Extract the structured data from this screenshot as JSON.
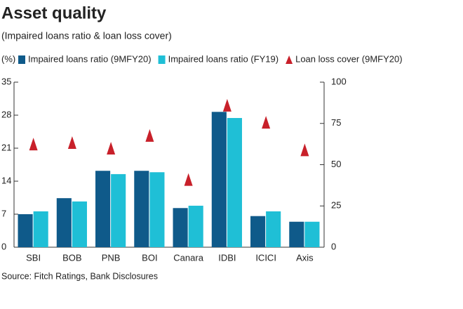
{
  "chart_data": {
    "type": "bar",
    "title": "Asset quality",
    "subtitle": "(Impaired loans ratio & loan loss cover)",
    "y_label": "(%)",
    "source": "Source: Fitch Ratings, Bank Disclosures",
    "categories": [
      "SBI",
      "BOB",
      "PNB",
      "BOI",
      "Canara",
      "IDBI",
      "ICICI",
      "Axis"
    ],
    "series": [
      {
        "name": "Impaired loans ratio (9MFY20)",
        "type": "bar",
        "color": "#0f5a8a",
        "values": [
          7.0,
          10.4,
          16.2,
          16.2,
          8.3,
          28.7,
          6.6,
          5.4
        ]
      },
      {
        "name": "Impaired loans ratio (FY19)",
        "type": "bar",
        "color": "#1fbfd6",
        "values": [
          7.6,
          9.7,
          15.5,
          15.9,
          8.8,
          27.4,
          7.6,
          5.4
        ]
      },
      {
        "name": "Loan loss cover (9MFY20)",
        "type": "triangle",
        "axis": "y2",
        "color": "#c8202a",
        "values": [
          62.5,
          63.4,
          60,
          67.7,
          41,
          86,
          75.7,
          59
        ]
      }
    ],
    "ylim": [
      0,
      35
    ],
    "yticks": [
      0,
      7,
      14,
      21,
      28,
      35
    ],
    "y2lim": [
      0,
      100
    ],
    "y2ticks": [
      0,
      25,
      50,
      75,
      100
    ],
    "grid": false
  }
}
